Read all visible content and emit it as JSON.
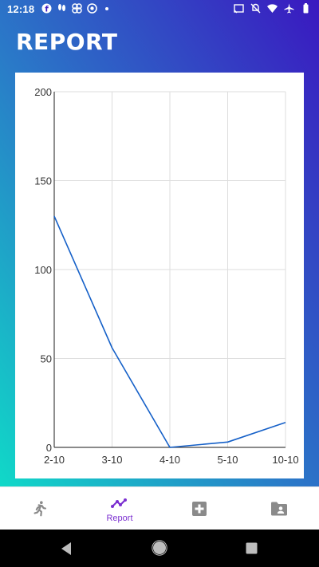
{
  "status_bar": {
    "time": "12:18",
    "left_icons": [
      "facebook-icon",
      "fitness-icon",
      "pinwheel-icon",
      "target-icon"
    ],
    "right_icons": [
      "cast-icon",
      "mute-icon",
      "wifi-icon",
      "airplane-icon",
      "battery-icon"
    ]
  },
  "header": {
    "title": "REPORT"
  },
  "chart_data": {
    "type": "line",
    "categories": [
      "2-10",
      "3-10",
      "4-10",
      "5-10",
      "10-10"
    ],
    "series": [
      {
        "values": [
          130,
          56,
          0,
          3,
          14
        ]
      }
    ],
    "ylim": [
      0,
      200
    ],
    "yticks": [
      0,
      50,
      100,
      150,
      200
    ],
    "grid": true,
    "line_color": "#1560c8",
    "title": "",
    "xlabel": "",
    "ylabel": ""
  },
  "bottom_nav": {
    "items": [
      {
        "icon": "running-icon",
        "label": "",
        "active": false
      },
      {
        "icon": "trending-up-icon",
        "label": "Report",
        "active": true
      },
      {
        "icon": "add-box-icon",
        "label": "",
        "active": false
      },
      {
        "icon": "contact-folder-icon",
        "label": "",
        "active": false
      }
    ],
    "active_color": "#7b2fd0",
    "inactive_color": "#8a8a8a"
  },
  "system_nav": {
    "icons": [
      "back-icon",
      "home-icon",
      "recents-icon"
    ]
  }
}
